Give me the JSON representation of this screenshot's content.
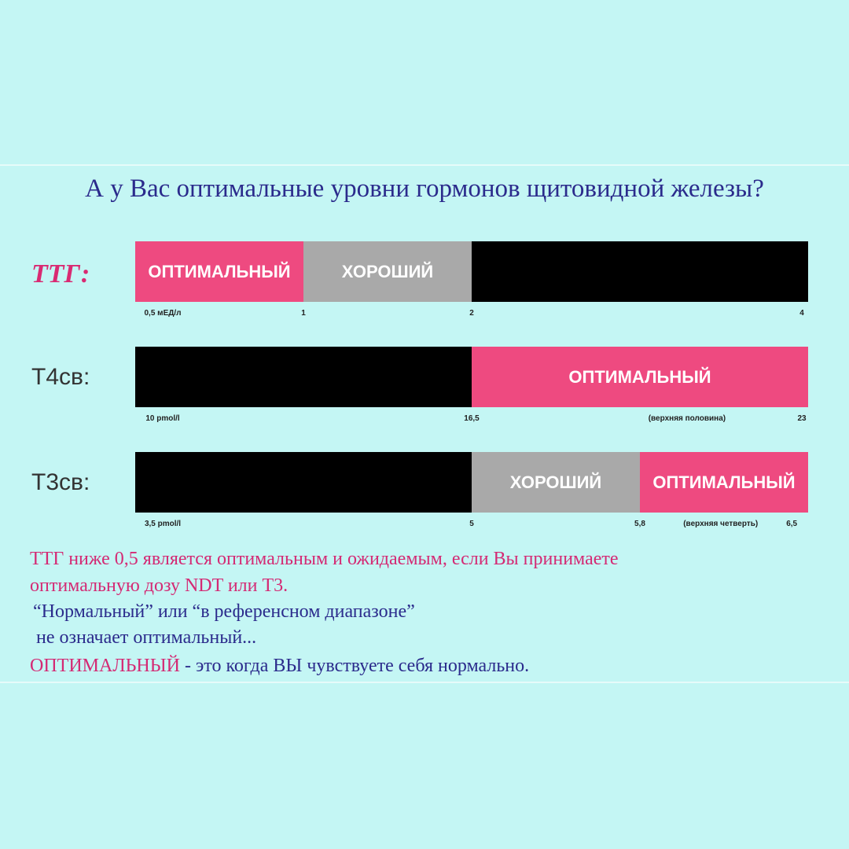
{
  "title": "А у Вас оптимальные уровни гормонов щитовидной железы?",
  "colors": {
    "optimal": "#ee4a80",
    "good": "#a9a9a9",
    "other": "#000000",
    "background": "#c4f6f4",
    "text_blue": "#2b2b8c",
    "text_pink": "#d42a74"
  },
  "chart_data": {
    "type": "bar",
    "rows": [
      {
        "label": "ТТГ:",
        "range": [
          0.5,
          4
        ],
        "segments": [
          {
            "from": 0.5,
            "to": 1,
            "label": "ОПТИМАЛЬНЫЙ",
            "kind": "optimal"
          },
          {
            "from": 1,
            "to": 2,
            "label": "ХОРОШИЙ",
            "kind": "good"
          },
          {
            "from": 2,
            "to": 4,
            "label": "",
            "kind": "other"
          }
        ],
        "ticks": [
          "0,5 мЕД/л",
          "1",
          "2",
          "4"
        ]
      },
      {
        "label": "Т4св:",
        "range": [
          10,
          23
        ],
        "segments": [
          {
            "from": 10,
            "to": 16.5,
            "label": "",
            "kind": "other"
          },
          {
            "from": 16.5,
            "to": 23,
            "label": "ОПТИМАЛЬНЫЙ",
            "kind": "optimal"
          }
        ],
        "ticks": [
          "10 pmol/l",
          "16,5",
          "(верхняя половина)",
          "23"
        ]
      },
      {
        "label": "Т3св:",
        "range": [
          3.5,
          6.5
        ],
        "segments": [
          {
            "from": 3.5,
            "to": 5,
            "label": "",
            "kind": "other"
          },
          {
            "from": 5,
            "to": 5.8,
            "label": "ХОРОШИЙ",
            "kind": "good"
          },
          {
            "from": 5.8,
            "to": 6.5,
            "label": "ОПТИМАЛЬНЫЙ",
            "kind": "optimal"
          }
        ],
        "ticks": [
          "3,5 pmol/l",
          "5",
          "5,8",
          "(верхняя четверть)",
          "6,5"
        ]
      }
    ]
  },
  "notes": {
    "line1": "ТТГ ниже 0,5 является оптимальным и ожидаемым, если Вы принимаете",
    "line2": "оптимальную дозу NDT или Т3.",
    "line3": "“Нормальный” или “в референсном диапазоне”",
    "line4": "не означает  оптимальный...",
    "line5a": "ОПТИМАЛЬНЫЙ",
    "line5b": " - это когда ВЫ чувствуете себя нормально."
  }
}
